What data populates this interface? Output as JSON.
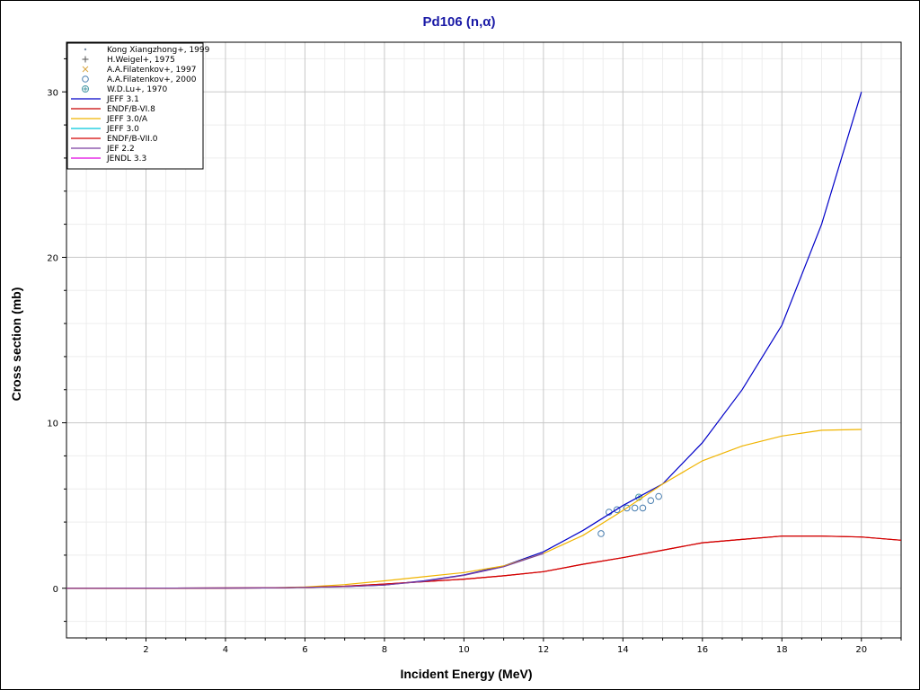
{
  "chart_data": {
    "type": "line",
    "title": "Pd106 (n,α)",
    "xlabel": "Incident Energy (MeV)",
    "ylabel": "Cross section (mb)",
    "xlim": [
      0,
      21
    ],
    "ylim": [
      -3,
      33
    ],
    "x_ticks": [
      2,
      4,
      6,
      8,
      10,
      12,
      14,
      16,
      18,
      20
    ],
    "y_ticks": [
      0,
      10,
      20,
      30
    ],
    "grid": true,
    "legend_position": "top-left",
    "series": [
      {
        "name": "Kong Xiangzhong+, 1999",
        "kind": "points",
        "marker": "dot",
        "color": "#7b8fa6",
        "points": []
      },
      {
        "name": "H.Weigel+, 1975",
        "kind": "points",
        "marker": "plus",
        "color": "#555555",
        "points": []
      },
      {
        "name": "A.A.Filatenkov+, 1997",
        "kind": "points",
        "marker": "cross",
        "color": "#d9a640",
        "points": []
      },
      {
        "name": "A.A.Filatenkov+, 2000",
        "kind": "points",
        "marker": "circle",
        "color": "#4a7fb0",
        "points": [
          [
            13.45,
            3.3
          ],
          [
            13.65,
            4.6
          ],
          [
            13.85,
            4.75
          ],
          [
            14.1,
            4.85
          ],
          [
            14.3,
            4.85
          ],
          [
            14.5,
            4.85
          ],
          [
            14.7,
            5.3
          ],
          [
            14.9,
            5.55
          ]
        ]
      },
      {
        "name": "W.D.Lu+, 1970",
        "kind": "points",
        "marker": "circle-cross",
        "color": "#4a9aa6",
        "points": [
          [
            14.4,
            5.5
          ]
        ]
      },
      {
        "name": "JEFF 3.1",
        "kind": "line",
        "color": "#0000c8",
        "points": [
          [
            0,
            0
          ],
          [
            5,
            0.02
          ],
          [
            6,
            0.05
          ],
          [
            7,
            0.1
          ],
          [
            8,
            0.2
          ],
          [
            9,
            0.45
          ],
          [
            10,
            0.8
          ],
          [
            11,
            1.35
          ],
          [
            12,
            2.2
          ],
          [
            13,
            3.5
          ],
          [
            14,
            5.0
          ],
          [
            15,
            6.3
          ],
          [
            16,
            8.8
          ],
          [
            17,
            12.0
          ],
          [
            18,
            15.9
          ],
          [
            19,
            22.0
          ],
          [
            20,
            30.0
          ]
        ]
      },
      {
        "name": "ENDF/B-VI.8",
        "kind": "line",
        "color": "#c80000",
        "points": [
          [
            0,
            0
          ],
          [
            5,
            0.02
          ],
          [
            6,
            0.05
          ],
          [
            7,
            0.12
          ],
          [
            8,
            0.25
          ],
          [
            9,
            0.4
          ],
          [
            10,
            0.55
          ],
          [
            11,
            0.75
          ],
          [
            12,
            1.0
          ],
          [
            13,
            1.45
          ],
          [
            14,
            1.85
          ],
          [
            15,
            2.3
          ],
          [
            16,
            2.75
          ],
          [
            17,
            2.95
          ],
          [
            18,
            3.15
          ],
          [
            19,
            3.15
          ],
          [
            20,
            3.1
          ],
          [
            21,
            2.9
          ]
        ]
      },
      {
        "name": "JEFF 3.0/A",
        "kind": "line",
        "color": "#f0b400",
        "points": [
          [
            0,
            0
          ],
          [
            5,
            0.02
          ],
          [
            6,
            0.08
          ],
          [
            7,
            0.22
          ],
          [
            8,
            0.45
          ],
          [
            9,
            0.7
          ],
          [
            10,
            0.95
          ],
          [
            11,
            1.35
          ],
          [
            12,
            2.1
          ],
          [
            13,
            3.2
          ],
          [
            14,
            4.7
          ],
          [
            15,
            6.3
          ],
          [
            16,
            7.7
          ],
          [
            17,
            8.6
          ],
          [
            18,
            9.2
          ],
          [
            19,
            9.55
          ],
          [
            20,
            9.6
          ]
        ]
      },
      {
        "name": "JEFF 3.0",
        "kind": "line",
        "color": "#00c8dc",
        "points": []
      },
      {
        "name": "ENDF/B-VII.0",
        "kind": "line",
        "color": "#d40000",
        "points": [
          [
            0,
            0
          ],
          [
            5,
            0.02
          ],
          [
            6,
            0.05
          ],
          [
            7,
            0.12
          ],
          [
            8,
            0.25
          ],
          [
            9,
            0.4
          ],
          [
            10,
            0.55
          ],
          [
            11,
            0.75
          ],
          [
            12,
            1.0
          ],
          [
            13,
            1.45
          ],
          [
            14,
            1.85
          ],
          [
            15,
            2.3
          ],
          [
            16,
            2.75
          ],
          [
            17,
            2.95
          ],
          [
            18,
            3.15
          ],
          [
            19,
            3.15
          ],
          [
            20,
            3.1
          ],
          [
            21,
            2.9
          ]
        ]
      },
      {
        "name": "JEF 2.2",
        "kind": "line",
        "color": "#7a3fa0",
        "points": [
          [
            0,
            0
          ],
          [
            5,
            0.02
          ],
          [
            6,
            0.05
          ],
          [
            7,
            0.1
          ],
          [
            8,
            0.2
          ],
          [
            9,
            0.42
          ],
          [
            10,
            0.78
          ],
          [
            11,
            1.3
          ],
          [
            12,
            2.1
          ]
        ]
      },
      {
        "name": "JENDL 3.3",
        "kind": "line",
        "color": "#e000e0",
        "points": []
      }
    ]
  }
}
